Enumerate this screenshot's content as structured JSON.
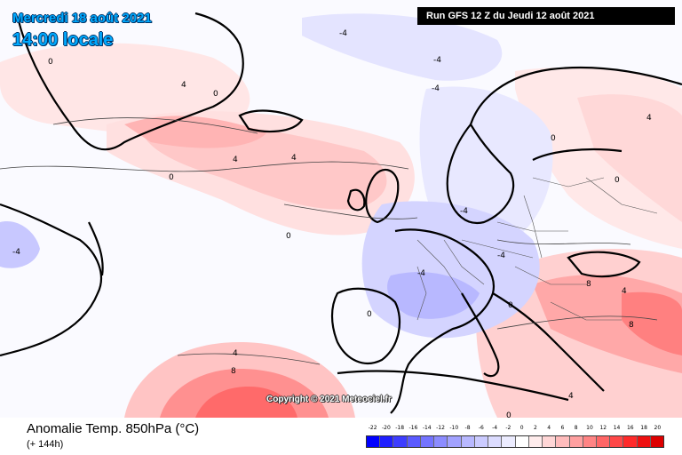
{
  "header": {
    "date": "Mercredi 18 août 2021",
    "time": "14:00 locale",
    "run": "Run GFS 12 Z du Jeudi 12 août 2021"
  },
  "copyright": "Copyright © 2021 Meteociel.fr",
  "legend": {
    "title": "Anomalie Temp. 850hPa (°C)",
    "subtitle": "(+ 144h)",
    "scale_labels": [
      "-22",
      "-20",
      "-18",
      "-16",
      "-14",
      "-12",
      "-10",
      "-8",
      "-6",
      "-4",
      "-2",
      "0",
      "2",
      "4",
      "6",
      "8",
      "10",
      "12",
      "14",
      "16",
      "18",
      "20"
    ],
    "scale_colors": [
      "#0000ff",
      "#1f1fff",
      "#3d3dff",
      "#5a5aff",
      "#7474ff",
      "#8c8cff",
      "#a2a2ff",
      "#b8b8ff",
      "#cbcbff",
      "#dcdcff",
      "#ececff",
      "#ffffff",
      "#ffecec",
      "#ffd6d6",
      "#ffbcbc",
      "#ffa0a0",
      "#ff8484",
      "#ff6666",
      "#ff4848",
      "#ff2a2a",
      "#ee1010",
      "#dd0000"
    ]
  },
  "map": {
    "contour_labels": [
      "0",
      "4",
      "-4",
      "8"
    ],
    "colors": {
      "warm_light": "#ffe6e6",
      "warm": "#ffc4c4",
      "warm_strong": "#ff8080",
      "cold_light": "#e4e4ff",
      "cold": "#c4c4ff",
      "coast": "#000000",
      "border": "#555555"
    }
  }
}
